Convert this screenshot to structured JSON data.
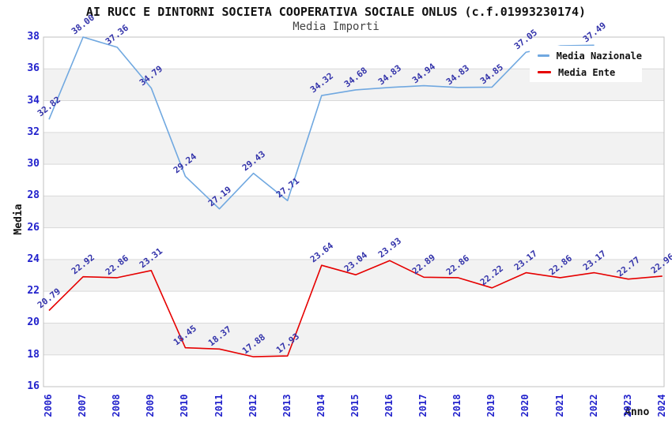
{
  "chart_data": {
    "type": "line",
    "title": "AI RUCC E DINTORNI SOCIETA COOPERATIVA SOCIALE ONLUS (c.f.01993230174)",
    "subtitle": "Media Importi",
    "xlabel": "Anno",
    "ylabel": "Media",
    "x": [
      2006,
      2007,
      2008,
      2009,
      2010,
      2011,
      2012,
      2013,
      2014,
      2015,
      2016,
      2017,
      2018,
      2019,
      2020,
      2021,
      2022,
      2023,
      2024
    ],
    "ylim": [
      16,
      38
    ],
    "ytick_step": 2,
    "grid": "alternating horizontal grey bands every 2 units",
    "legend_position": "top-right, white box overlapping plot",
    "series": [
      {
        "name": "Media Nazionale",
        "color": "#70a8e0",
        "values": [
          32.82,
          38.0,
          37.36,
          34.79,
          29.24,
          27.19,
          29.43,
          27.71,
          34.32,
          34.68,
          34.83,
          34.94,
          34.83,
          34.85,
          37.05,
          37.45,
          37.49,
          null,
          null
        ],
        "hidden_label_indices": [
          15
        ],
        "note": "2021 point label hidden behind legend; no visible data after 2022"
      },
      {
        "name": "Media Ente",
        "color": "#e60000",
        "values": [
          20.79,
          22.92,
          22.86,
          23.31,
          18.45,
          18.37,
          17.88,
          17.93,
          23.64,
          23.04,
          23.93,
          22.89,
          22.86,
          22.22,
          23.17,
          22.86,
          23.17,
          22.77,
          22.96
        ],
        "hidden_label_indices": []
      }
    ]
  },
  "colors": {
    "band_grey": "#f2f2f2",
    "grid_line": "#d9d9d9",
    "plot_border": "#c0c0c0",
    "tick_label": "#2222cc",
    "data_label": "#3333aa",
    "title": "#111111",
    "subtitle": "#444444"
  }
}
